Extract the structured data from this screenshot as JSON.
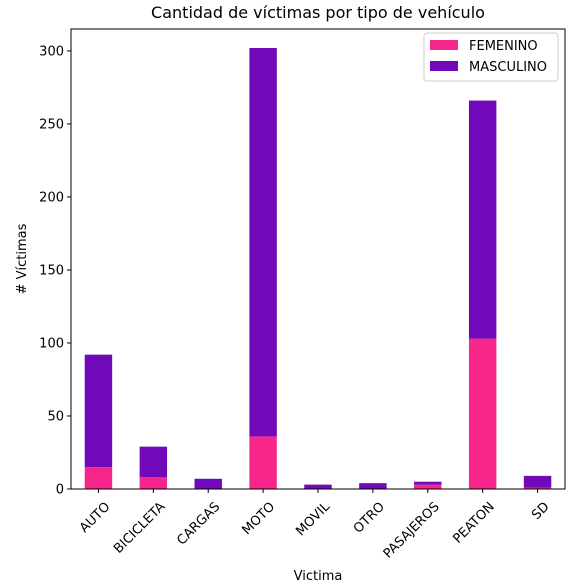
{
  "chart_data": {
    "type": "bar",
    "stacked": true,
    "title": "Cantidad de víctimas por tipo de vehículo",
    "xlabel": "Victima",
    "ylabel": "# Víctimas",
    "ylim": [
      0,
      315
    ],
    "yticks": [
      0,
      50,
      100,
      150,
      200,
      250,
      300
    ],
    "grid": false,
    "legend_position": "top-right",
    "categories": [
      "AUTO",
      "BICICLETA",
      "CARGAS",
      "MOTO",
      "MOVIL",
      "OTRO",
      "PASAJEROS",
      "PEATON",
      "SD"
    ],
    "series": [
      {
        "name": "FEMENINO",
        "color": "#f7268a",
        "values": [
          15,
          8,
          0,
          36,
          0,
          0,
          3,
          103,
          1
        ]
      },
      {
        "name": "MASCULINO",
        "color": "#700ab8",
        "values": [
          77,
          21,
          7,
          266,
          3,
          4,
          2,
          163,
          8
        ]
      }
    ]
  }
}
